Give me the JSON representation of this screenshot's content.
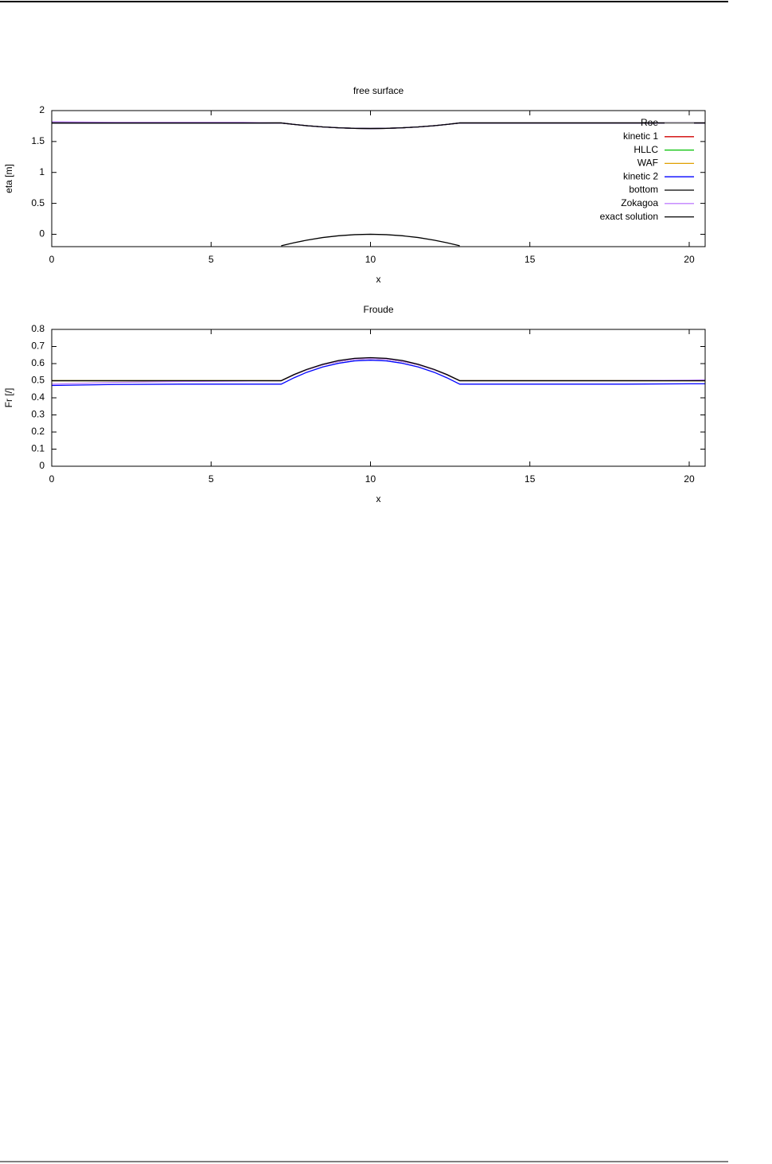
{
  "chart_data": [
    {
      "type": "line",
      "title": "free surface",
      "xlabel": "x",
      "ylabel": "eta [m]",
      "x": [
        0,
        2,
        4,
        6,
        7,
        7.2,
        7.6,
        8,
        8.5,
        9,
        9.5,
        10,
        10.5,
        11,
        11.5,
        12,
        12.4,
        12.8,
        13,
        14,
        16,
        18,
        20,
        20.5
      ],
      "xlim": [
        0,
        20.5
      ],
      "xticks": [
        0,
        5,
        10,
        15,
        20
      ],
      "ylim": [
        -0.2,
        2
      ],
      "yticks": [
        0,
        0.5,
        1,
        1.5,
        2
      ],
      "legend": "top-right",
      "series": [
        {
          "name": "Roe",
          "color": "#a0a0a0",
          "values": [
            1.8,
            1.8,
            1.8,
            1.8,
            1.8,
            1.8,
            1.776,
            1.756,
            1.736,
            1.722,
            1.713,
            1.71,
            1.713,
            1.722,
            1.736,
            1.756,
            1.776,
            1.8,
            1.8,
            1.8,
            1.8,
            1.8,
            1.8,
            1.8
          ]
        },
        {
          "name": "kinetic 1",
          "color": "#d00000",
          "values": [
            1.8,
            1.8,
            1.8,
            1.8,
            1.8,
            1.8,
            1.776,
            1.756,
            1.736,
            1.722,
            1.713,
            1.71,
            1.713,
            1.722,
            1.736,
            1.756,
            1.776,
            1.8,
            1.8,
            1.8,
            1.8,
            1.8,
            1.8,
            1.8
          ]
        },
        {
          "name": "HLLC",
          "color": "#00c000",
          "values": [
            1.8,
            1.8,
            1.8,
            1.8,
            1.8,
            1.8,
            1.776,
            1.756,
            1.736,
            1.722,
            1.713,
            1.71,
            1.713,
            1.722,
            1.736,
            1.756,
            1.776,
            1.8,
            1.8,
            1.8,
            1.8,
            1.8,
            1.8,
            1.8
          ]
        },
        {
          "name": "WAF",
          "color": "#e0a000",
          "values": [
            1.8,
            1.8,
            1.8,
            1.8,
            1.8,
            1.8,
            1.776,
            1.756,
            1.736,
            1.722,
            1.713,
            1.71,
            1.713,
            1.722,
            1.736,
            1.756,
            1.776,
            1.8,
            1.8,
            1.8,
            1.8,
            1.8,
            1.8,
            1.8
          ]
        },
        {
          "name": "kinetic 2",
          "color": "#0000ff",
          "values": [
            1.8,
            1.8,
            1.8,
            1.8,
            1.8,
            1.8,
            1.776,
            1.756,
            1.736,
            1.722,
            1.713,
            1.71,
            1.713,
            1.722,
            1.736,
            1.756,
            1.776,
            1.8,
            1.8,
            1.8,
            1.8,
            1.8,
            1.8,
            1.8
          ]
        },
        {
          "name": "bottom",
          "color": "#000000",
          "values": [
            null,
            null,
            null,
            null,
            null,
            -0.186,
            -0.137,
            -0.095,
            -0.053,
            -0.024,
            -0.006,
            0,
            -0.006,
            -0.024,
            -0.053,
            -0.095,
            -0.137,
            -0.186,
            null,
            null,
            null,
            null,
            null,
            null
          ]
        },
        {
          "name": "Zokagoa",
          "color": "#c080ff",
          "values": [
            1.82,
            1.81,
            1.81,
            1.81,
            1.8,
            1.8,
            1.776,
            1.756,
            1.736,
            1.722,
            1.713,
            1.71,
            1.713,
            1.722,
            1.736,
            1.756,
            1.776,
            1.8,
            1.8,
            1.8,
            1.8,
            1.8,
            1.8,
            1.8
          ]
        },
        {
          "name": "exact solution",
          "color": "#000000",
          "values": [
            1.8,
            1.8,
            1.8,
            1.8,
            1.8,
            1.8,
            1.776,
            1.756,
            1.736,
            1.722,
            1.713,
            1.71,
            1.713,
            1.722,
            1.736,
            1.756,
            1.776,
            1.8,
            1.8,
            1.8,
            1.8,
            1.8,
            1.8,
            1.8
          ]
        }
      ]
    },
    {
      "type": "line",
      "title": "Froude",
      "xlabel": "x",
      "ylabel": "Fr [/]",
      "x": [
        0,
        2,
        4,
        6,
        7,
        7.2,
        7.6,
        8,
        8.5,
        9,
        9.5,
        10,
        10.5,
        11,
        11.5,
        12,
        12.4,
        12.8,
        13,
        14,
        16,
        18,
        20,
        20.5
      ],
      "xlim": [
        0,
        20.5
      ],
      "xticks": [
        0,
        5,
        10,
        15,
        20
      ],
      "ylim": [
        0,
        0.8
      ],
      "yticks": [
        0,
        0.1,
        0.2,
        0.3,
        0.4,
        0.5,
        0.6,
        0.7,
        0.8
      ],
      "series": [
        {
          "color": "#a0a0a0",
          "values": [
            0.5,
            0.5,
            0.5,
            0.5,
            0.5,
            0.5,
            0.534,
            0.564,
            0.593,
            0.613,
            0.626,
            0.63,
            0.626,
            0.613,
            0.593,
            0.564,
            0.534,
            0.5,
            0.5,
            0.5,
            0.5,
            0.5,
            0.5,
            0.5
          ]
        },
        {
          "color": "#d00000",
          "values": [
            0.5,
            0.5,
            0.5,
            0.5,
            0.5,
            0.5,
            0.534,
            0.564,
            0.593,
            0.613,
            0.626,
            0.63,
            0.626,
            0.613,
            0.593,
            0.564,
            0.534,
            0.5,
            0.5,
            0.5,
            0.5,
            0.5,
            0.5,
            0.5
          ]
        },
        {
          "color": "#00c000",
          "values": [
            0.5,
            0.5,
            0.5,
            0.5,
            0.5,
            0.5,
            0.534,
            0.564,
            0.593,
            0.613,
            0.626,
            0.63,
            0.626,
            0.613,
            0.593,
            0.564,
            0.534,
            0.5,
            0.5,
            0.5,
            0.5,
            0.5,
            0.5,
            0.5
          ]
        },
        {
          "color": "#e0a000",
          "values": [
            0.5,
            0.5,
            0.5,
            0.5,
            0.5,
            0.5,
            0.534,
            0.564,
            0.593,
            0.613,
            0.626,
            0.63,
            0.626,
            0.613,
            0.593,
            0.564,
            0.534,
            0.5,
            0.5,
            0.5,
            0.5,
            0.5,
            0.5,
            0.5
          ]
        },
        {
          "color": "#0000ff",
          "values": [
            0.472,
            0.478,
            0.48,
            0.48,
            0.48,
            0.48,
            0.517,
            0.549,
            0.58,
            0.602,
            0.616,
            0.62,
            0.616,
            0.602,
            0.58,
            0.549,
            0.517,
            0.48,
            0.48,
            0.48,
            0.48,
            0.48,
            0.482,
            0.482
          ]
        },
        {
          "color": "#c080ff",
          "values": [
            0.48,
            0.49,
            0.495,
            0.498,
            0.5,
            0.5,
            0.534,
            0.564,
            0.593,
            0.613,
            0.626,
            0.63,
            0.626,
            0.613,
            0.593,
            0.564,
            0.534,
            0.5,
            0.5,
            0.5,
            0.5,
            0.5,
            0.503,
            0.505
          ]
        },
        {
          "color": "#000000",
          "values": [
            0.5,
            0.5,
            0.5,
            0.5,
            0.5,
            0.5,
            0.536,
            0.566,
            0.596,
            0.618,
            0.631,
            0.635,
            0.631,
            0.618,
            0.596,
            0.566,
            0.536,
            0.5,
            0.5,
            0.5,
            0.5,
            0.5,
            0.5,
            0.5
          ]
        }
      ]
    }
  ]
}
